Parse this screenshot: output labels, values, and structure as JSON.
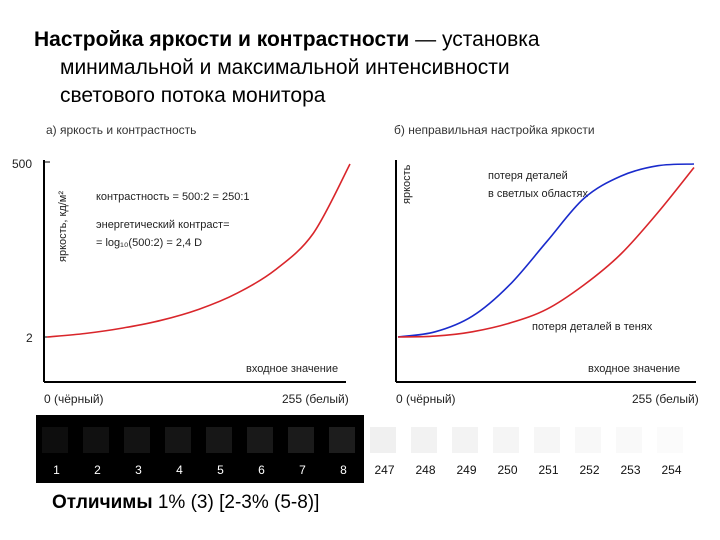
{
  "heading": {
    "bold": "Настройка яркости и контрастности",
    "line1_rest": " — установка",
    "line2": "минимальной и максимальной интенсивности",
    "line3": "светового потока монитора"
  },
  "chart_left": {
    "title": "а) яркость и контрастность",
    "ylabel": "яркость, кд/м²",
    "ytick_top": "500",
    "ytick_bottom": "2",
    "xlabel": "входное значение",
    "xtick_left": "0 (чёрный)",
    "xtick_right": "255 (белый)",
    "annot1": "контрастность = 500:2 = 250:1",
    "annot2": "энергетический контраст=",
    "annot3": "= log₁₀(500:2) = 2,4 D",
    "curve_color": "#d9262b"
  },
  "chart_right": {
    "title": "б) неправильная настройка яркости",
    "ylabel": "яркость",
    "xlabel": "входное значение",
    "xtick_left": "0 (чёрный)",
    "xtick_right": "255 (белый)",
    "annot_blue_1": "потеря деталей",
    "annot_blue_2": "в светлых областях",
    "annot_red": "потеря деталей в тенях",
    "blue_color": "#1a2bcc",
    "red_color": "#d9262b"
  },
  "chart_data": [
    {
      "type": "line",
      "title": "а) яркость и контрастность",
      "xlabel": "входное значение",
      "ylabel": "яркость, кд/м²",
      "xlim": [
        0,
        255
      ],
      "ylim": [
        2,
        500
      ],
      "series": [
        {
          "x": [
            0,
            32,
            64,
            96,
            128,
            160,
            192,
            224,
            255
          ],
          "values": [
            2,
            12,
            28,
            50,
            82,
            128,
            195,
            300,
            500
          ]
        }
      ]
    },
    {
      "type": "line",
      "title": "б) неправильная настройка яркости",
      "xlabel": "входное значение",
      "ylabel": "яркость",
      "xlim": [
        0,
        255
      ],
      "series": [
        {
          "x": [
            0,
            32,
            64,
            96,
            128,
            160,
            192,
            224,
            255
          ],
          "values": [
            0,
            0.03,
            0.12,
            0.3,
            0.55,
            0.8,
            0.93,
            0.99,
            1.0
          ]
        },
        {
          "x": [
            0,
            32,
            64,
            96,
            128,
            160,
            192,
            224,
            255
          ],
          "values": [
            0,
            0.005,
            0.03,
            0.08,
            0.16,
            0.3,
            0.48,
            0.72,
            0.98
          ]
        }
      ]
    }
  ],
  "strip": {
    "dark": [
      {
        "label": "1",
        "color": "#0e0e0e"
      },
      {
        "label": "2",
        "color": "#111111"
      },
      {
        "label": "3",
        "color": "#131313"
      },
      {
        "label": "4",
        "color": "#151515"
      },
      {
        "label": "5",
        "color": "#171717"
      },
      {
        "label": "6",
        "color": "#191919"
      },
      {
        "label": "7",
        "color": "#1b1b1b"
      },
      {
        "label": "8",
        "color": "#1d1d1d"
      }
    ],
    "light": [
      {
        "label": "247",
        "color": "#f0f0f0"
      },
      {
        "label": "248",
        "color": "#f2f2f2"
      },
      {
        "label": "249",
        "color": "#f3f3f3"
      },
      {
        "label": "250",
        "color": "#f5f5f5"
      },
      {
        "label": "251",
        "color": "#f6f6f6"
      },
      {
        "label": "252",
        "color": "#f8f8f8"
      },
      {
        "label": "253",
        "color": "#f9f9f9"
      },
      {
        "label": "254",
        "color": "#fbfbfb"
      }
    ]
  },
  "footer": {
    "bold": "Отличимы",
    "rest": " 1% (3)  [2-3% (5-8)]"
  }
}
